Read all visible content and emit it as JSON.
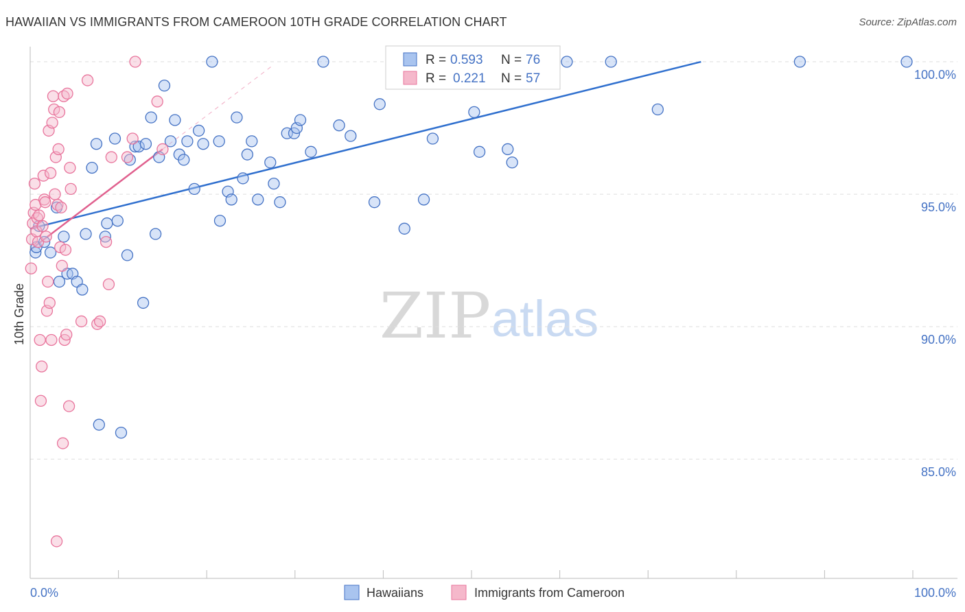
{
  "header": {
    "title": "HAWAIIAN VS IMMIGRANTS FROM CAMEROON 10TH GRADE CORRELATION CHART",
    "source": "Source: ZipAtlas.com"
  },
  "watermark": {
    "zip": "ZIP",
    "atlas": "atlas"
  },
  "colors": {
    "blue": "#4472c4",
    "blue_fill": "#a9c4ef",
    "blue_line": "#2f6fce",
    "pink": "#e8739b",
    "pink_fill": "#f5b8cb",
    "pink_line": "#e0608e",
    "grid": "#dddddd"
  },
  "stats_box": {
    "rows": [
      {
        "r_label": "R =",
        "r_value": "0.593",
        "n_label": "N =",
        "n_value": "76",
        "color": "blue"
      },
      {
        "r_label": "R =",
        "r_value": "0.221",
        "n_label": "N =",
        "n_value": "57",
        "color": "pink"
      }
    ]
  },
  "chart_data": {
    "type": "scatter",
    "title": "HAWAIIAN VS IMMIGRANTS FROM CAMEROON 10TH GRADE CORRELATION CHART",
    "xlabel": "",
    "ylabel": "10th Grade",
    "xlim": [
      0,
      100
    ],
    "ylim": [
      80.5,
      100.7
    ],
    "x_tick_labels": [
      "0.0%",
      "100.0%"
    ],
    "y_ticks": [
      85,
      90,
      95,
      100
    ],
    "y_tick_labels": [
      "85.0%",
      "90.0%",
      "95.0%",
      "100.0%"
    ],
    "grid": "horizontal dashed",
    "legend_position": "bottom-center",
    "series": [
      {
        "name": "Hawaiians",
        "color": "blue",
        "trend": {
          "x": [
            0,
            76
          ],
          "y": [
            93.7,
            100.0
          ]
        },
        "points": [
          [
            0.6,
            92.8
          ],
          [
            0.7,
            93.0
          ],
          [
            1.0,
            93.8
          ],
          [
            1.6,
            93.2
          ],
          [
            2.3,
            92.8
          ],
          [
            3.0,
            94.5
          ],
          [
            3.3,
            91.7
          ],
          [
            3.8,
            93.4
          ],
          [
            4.2,
            92.0
          ],
          [
            4.8,
            92.0
          ],
          [
            5.3,
            91.7
          ],
          [
            5.9,
            91.4
          ],
          [
            6.3,
            93.5
          ],
          [
            7.0,
            96.0
          ],
          [
            7.5,
            96.9
          ],
          [
            7.8,
            86.3
          ],
          [
            8.5,
            93.4
          ],
          [
            8.7,
            93.9
          ],
          [
            9.6,
            97.1
          ],
          [
            9.9,
            94.0
          ],
          [
            10.3,
            86.0
          ],
          [
            11.0,
            92.7
          ],
          [
            11.3,
            96.3
          ],
          [
            11.9,
            96.8
          ],
          [
            12.3,
            96.8
          ],
          [
            12.8,
            90.9
          ],
          [
            13.1,
            96.9
          ],
          [
            13.7,
            97.9
          ],
          [
            14.2,
            93.5
          ],
          [
            14.6,
            96.4
          ],
          [
            15.2,
            99.1
          ],
          [
            15.9,
            97.0
          ],
          [
            16.4,
            97.8
          ],
          [
            16.9,
            96.5
          ],
          [
            17.4,
            96.3
          ],
          [
            17.8,
            97.0
          ],
          [
            18.6,
            95.2
          ],
          [
            19.1,
            97.4
          ],
          [
            19.6,
            96.9
          ],
          [
            20.6,
            100.0
          ],
          [
            21.4,
            97.0
          ],
          [
            21.5,
            94.0
          ],
          [
            22.4,
            95.1
          ],
          [
            22.8,
            94.8
          ],
          [
            23.4,
            97.9
          ],
          [
            24.1,
            95.6
          ],
          [
            24.6,
            96.5
          ],
          [
            25.1,
            97.0
          ],
          [
            25.8,
            94.8
          ],
          [
            27.2,
            96.2
          ],
          [
            27.6,
            95.4
          ],
          [
            28.3,
            94.7
          ],
          [
            29.1,
            97.3
          ],
          [
            29.9,
            97.3
          ],
          [
            30.2,
            97.5
          ],
          [
            30.6,
            97.8
          ],
          [
            31.8,
            96.6
          ],
          [
            33.2,
            100.0
          ],
          [
            35.0,
            97.6
          ],
          [
            36.3,
            97.2
          ],
          [
            39.0,
            94.7
          ],
          [
            39.6,
            98.4
          ],
          [
            42.4,
            93.7
          ],
          [
            44.6,
            94.8
          ],
          [
            45.6,
            97.1
          ],
          [
            49.1,
            100.0
          ],
          [
            50.3,
            98.1
          ],
          [
            50.9,
            96.6
          ],
          [
            53.4,
            100.0
          ],
          [
            54.1,
            96.7
          ],
          [
            54.6,
            96.2
          ],
          [
            60.8,
            100.0
          ],
          [
            65.8,
            100.0
          ],
          [
            71.1,
            98.2
          ],
          [
            87.2,
            100.0
          ],
          [
            99.3,
            100.0
          ]
        ]
      },
      {
        "name": "Immigrants from Cameroon",
        "color": "pink",
        "trend": {
          "x": [
            0,
            15
          ],
          "y": [
            92.9,
            96.7
          ]
        },
        "points": [
          [
            0.1,
            92.2
          ],
          [
            0.2,
            93.3
          ],
          [
            0.3,
            93.9
          ],
          [
            0.4,
            94.3
          ],
          [
            0.5,
            95.4
          ],
          [
            0.6,
            94.6
          ],
          [
            0.7,
            93.6
          ],
          [
            0.8,
            94.1
          ],
          [
            0.9,
            93.2
          ],
          [
            1.0,
            94.2
          ],
          [
            1.1,
            89.5
          ],
          [
            1.2,
            87.2
          ],
          [
            1.3,
            88.5
          ],
          [
            1.4,
            93.8
          ],
          [
            1.5,
            95.7
          ],
          [
            1.6,
            94.8
          ],
          [
            1.7,
            94.7
          ],
          [
            1.8,
            93.4
          ],
          [
            1.9,
            90.6
          ],
          [
            2.0,
            91.7
          ],
          [
            2.1,
            97.4
          ],
          [
            2.2,
            90.9
          ],
          [
            2.3,
            95.8
          ],
          [
            2.4,
            89.5
          ],
          [
            2.5,
            97.7
          ],
          [
            2.6,
            98.7
          ],
          [
            2.7,
            98.2
          ],
          [
            2.8,
            95.0
          ],
          [
            2.9,
            96.4
          ],
          [
            3.0,
            81.9
          ],
          [
            3.1,
            94.6
          ],
          [
            3.2,
            96.7
          ],
          [
            3.3,
            98.1
          ],
          [
            3.4,
            93.0
          ],
          [
            3.5,
            94.5
          ],
          [
            3.6,
            92.3
          ],
          [
            3.7,
            85.6
          ],
          [
            3.8,
            98.7
          ],
          [
            3.9,
            89.5
          ],
          [
            4.0,
            92.9
          ],
          [
            4.1,
            89.7
          ],
          [
            4.2,
            98.8
          ],
          [
            4.4,
            87.0
          ],
          [
            4.5,
            96.0
          ],
          [
            4.6,
            95.2
          ],
          [
            5.8,
            90.2
          ],
          [
            6.5,
            99.3
          ],
          [
            7.6,
            90.1
          ],
          [
            8.6,
            93.2
          ],
          [
            8.9,
            91.6
          ],
          [
            9.2,
            96.4
          ],
          [
            11.0,
            96.4
          ],
          [
            11.6,
            97.1
          ],
          [
            11.9,
            100.0
          ],
          [
            14.4,
            98.5
          ],
          [
            15.0,
            96.7
          ],
          [
            7.9,
            90.2
          ]
        ]
      }
    ]
  },
  "legend": {
    "items": [
      {
        "label": "Hawaiians",
        "color": "blue"
      },
      {
        "label": "Immigrants from Cameroon",
        "color": "pink"
      }
    ]
  }
}
